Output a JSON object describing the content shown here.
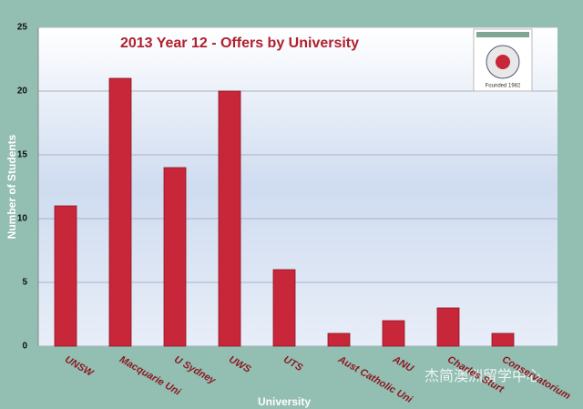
{
  "chart_data": {
    "type": "bar",
    "title": "2013  Year 12 - Offers by University",
    "x_label": "University",
    "y_label": "Number of Students",
    "categories": [
      "UNSW",
      "Macquarie Uni",
      "U Sydney",
      "UWS",
      "UTS",
      "Aust Catholic Uni",
      "ANU",
      "Charles Sturt",
      "Conservatorium"
    ],
    "values": [
      11,
      21,
      14,
      20,
      6,
      1,
      2,
      3,
      1
    ],
    "color": "#c8273a",
    "ylim": [
      0,
      25
    ],
    "yticks": [
      0,
      5,
      10,
      15,
      20,
      25
    ],
    "grid": true,
    "logo_caption": "Founded 1982",
    "watermark": "杰简澳洲留学中心"
  }
}
